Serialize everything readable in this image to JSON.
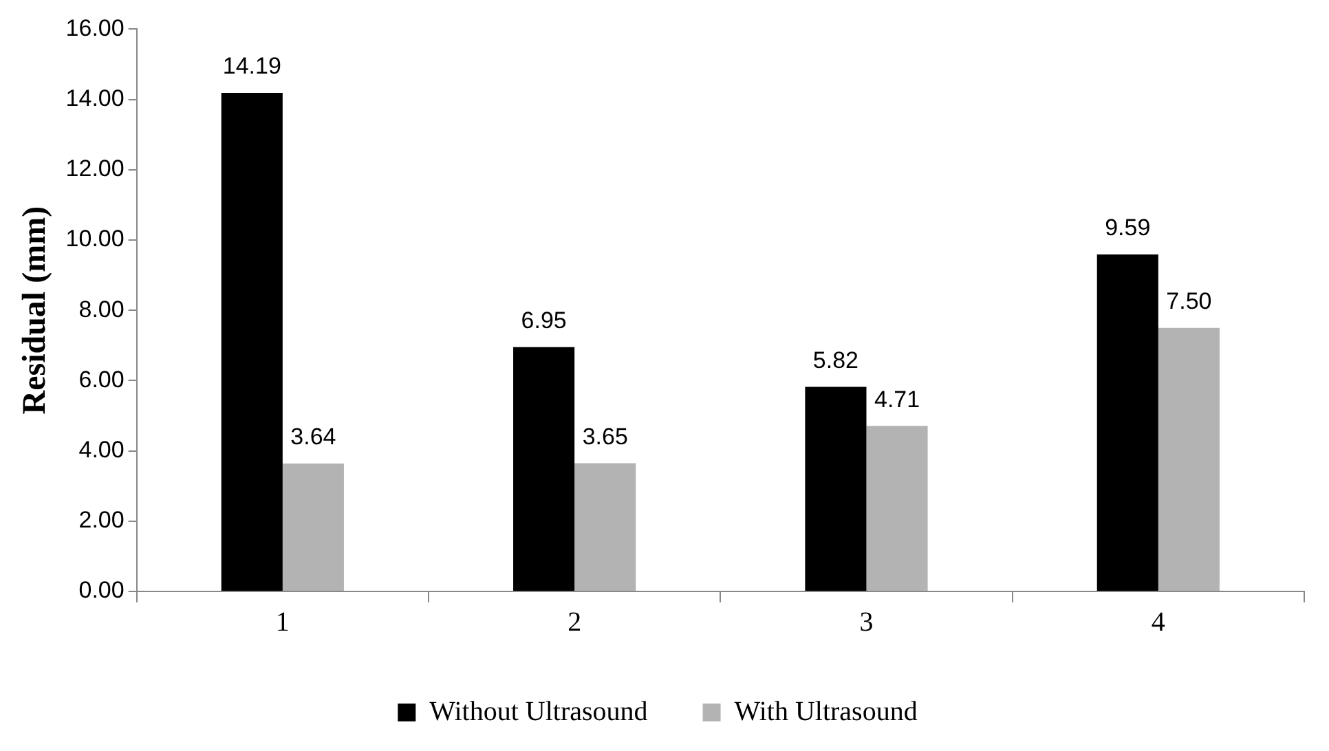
{
  "chart_data": {
    "type": "bar",
    "ylabel": "Residual (mm)",
    "categories": [
      "1",
      "2",
      "3",
      "4"
    ],
    "series": [
      {
        "name": "Without Ultrasound",
        "color": "#000000",
        "values": [
          14.19,
          6.95,
          5.82,
          9.59
        ],
        "value_labels": [
          "14.19",
          "6.95",
          "5.82",
          "9.59"
        ]
      },
      {
        "name": "With Ultrasound",
        "color": "#b3b3b3",
        "values": [
          3.64,
          3.65,
          4.71,
          7.5
        ],
        "value_labels": [
          "3.64",
          "3.65",
          "4.71",
          "7.50"
        ]
      }
    ],
    "ylim": [
      0,
      16
    ],
    "yticks": [
      {
        "value": 0,
        "label": "0.00"
      },
      {
        "value": 2,
        "label": "2.00"
      },
      {
        "value": 4,
        "label": "4.00"
      },
      {
        "value": 6,
        "label": "6.00"
      },
      {
        "value": 8,
        "label": "8.00"
      },
      {
        "value": 10,
        "label": "10.00"
      },
      {
        "value": 12,
        "label": "12.00"
      },
      {
        "value": 14,
        "label": "14.00"
      },
      {
        "value": 16,
        "label": "16.00"
      }
    ],
    "grid": false,
    "legend": "bottom"
  }
}
